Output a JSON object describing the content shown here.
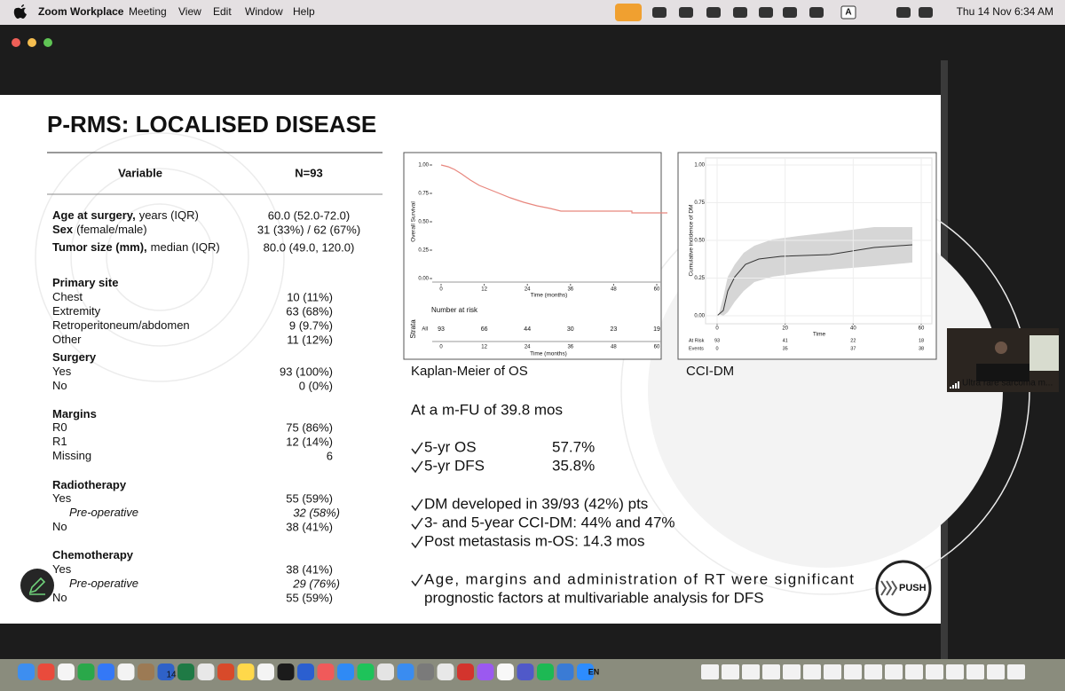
{
  "menubar": {
    "app": "Zoom Workplace",
    "menus": [
      "Meeting",
      "View",
      "Edit",
      "Window",
      "Help"
    ],
    "input": "A",
    "clock": "Thu 14 Nov 6:34 AM"
  },
  "slide": {
    "title": "P-RMS: LOCALISED DISEASE",
    "table": {
      "header": [
        "Variable",
        "N=93"
      ],
      "rows": [
        {
          "bold": "Age at surgery,",
          "label": "years (IQR)",
          "value": "60.0 (52.0-72.0)"
        },
        {
          "bold": "Sex",
          "label": "(female/male)",
          "value": "31 (33%) / 62 (67%)"
        },
        {
          "bold": "Tumor size (mm),",
          "label": "median (IQR)",
          "value": "80.0 (49.0, 120.0)"
        },
        {
          "bold": "Primary site"
        },
        {
          "label": "Chest",
          "value": "10 (11%)"
        },
        {
          "label": "Extremity",
          "value": "63 (68%)"
        },
        {
          "label": "Retroperitoneum/abdomen",
          "value": "9 (9.7%)"
        },
        {
          "label": "Other",
          "value": "11 (12%)"
        },
        {
          "bold": "Surgery"
        },
        {
          "label": "Yes",
          "value": "93 (100%)"
        },
        {
          "label": "No",
          "value": "0 (0%)"
        },
        {
          "bold": "Margins"
        },
        {
          "label": "R0",
          "value": "75 (86%)"
        },
        {
          "label": "R1",
          "value": "12 (14%)"
        },
        {
          "label": "Missing",
          "value": "6"
        },
        {
          "bold": "Radiotherapy"
        },
        {
          "label": "Yes",
          "value": "55 (59%)"
        },
        {
          "label": "Pre-operative",
          "value": "32 (58%)",
          "italic": true
        },
        {
          "label": "No",
          "value": "38 (41%)"
        },
        {
          "bold": "Chemotherapy"
        },
        {
          "label": "Yes",
          "value": "38 (41%)"
        },
        {
          "label": "Pre-operative",
          "value": "29 (76%)",
          "italic": true
        },
        {
          "label": "No",
          "value": "55 (59%)"
        }
      ]
    },
    "km_chart": {
      "caption": "Kaplan-Meier of OS",
      "ylabel": "Overall Survival",
      "xlabel": "Time (months)",
      "xlim": [
        0,
        60
      ],
      "ylim": [
        0,
        1
      ],
      "xticks": [
        0,
        12,
        24,
        36,
        48,
        60
      ],
      "yticks": [
        {
          "value": 1,
          "label": "1.00"
        },
        {
          "value": 0.75,
          "label": "0.75"
        },
        {
          "value": 0.5,
          "label": "0.50"
        },
        {
          "value": 0.25,
          "label": "0.25"
        },
        {
          "value": 0,
          "label": "0.00"
        }
      ],
      "risk": {
        "title": "Number at risk",
        "strata": "Strata",
        "group": "All",
        "values": [
          93,
          66,
          44,
          30,
          23,
          19
        ]
      }
    },
    "cci_chart": {
      "caption": "CCI-DM",
      "ylabel": "Cumulative incidence of DM",
      "xlabel": "Time",
      "xlim": [
        0,
        60
      ],
      "ylim": [
        0,
        1
      ],
      "xticks": [
        0,
        20,
        40,
        60
      ],
      "yticks": [
        {
          "value": 1,
          "label": "1.00"
        },
        {
          "value": 0.75,
          "label": "0.75"
        },
        {
          "value": 0.5,
          "label": "0.50"
        },
        {
          "value": 0.25,
          "label": "0.25"
        },
        {
          "value": 0,
          "label": "0.00"
        }
      ],
      "risk": [
        {
          "label": "At Risk",
          "values": [
            93,
            41,
            22,
            18
          ]
        },
        {
          "label": "Events",
          "values": [
            0,
            35,
            37,
            38
          ]
        }
      ]
    },
    "bullets": [
      {
        "text": "At a m-FU of 39.8 mos"
      },
      {
        "text": "5-yr OS",
        "value": "57.7%",
        "check": true
      },
      {
        "text": "5-yr DFS",
        "value": "35.8%",
        "check": true
      },
      {
        "text": "DM developed in 39/93 (42%) pts",
        "check": true
      },
      {
        "text": "3- and 5-year CCI-DM: 44% and 47%",
        "check": true
      },
      {
        "text": "Post metastasis m-OS: 14.3 mos",
        "check": true
      },
      {
        "lines": [
          "Age, margins and administration of RT were significant",
          "prognostic factors at multivariable analysis for DFS"
        ],
        "check": true
      }
    ],
    "logo": "PUSH"
  },
  "video": {
    "name": "Ultra rare sarcoma m..."
  },
  "dock": {
    "date": "14",
    "lang": "EN"
  }
}
